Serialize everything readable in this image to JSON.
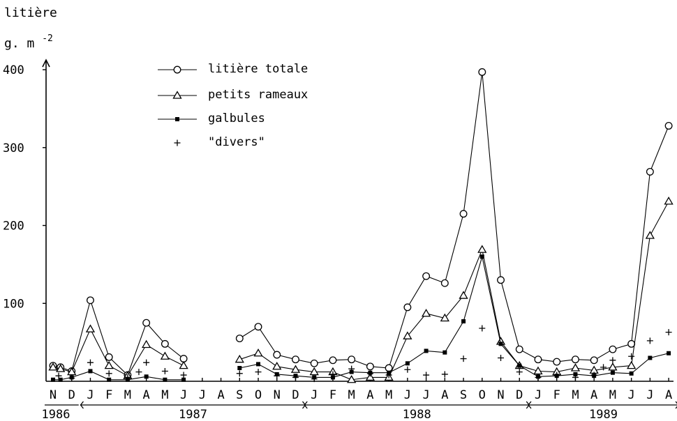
{
  "chart_data": {
    "type": "line",
    "ylabel_line1": "litière",
    "ylabel_line2": "g. m",
    "ylabel_exp": "-2",
    "ylim": [
      0,
      400
    ],
    "yticks": [
      "100",
      "200",
      "300",
      "400"
    ],
    "x": [
      "N",
      "D",
      "J",
      "F",
      "M",
      "A",
      "M",
      "J",
      "J",
      "A",
      "S",
      "O",
      "N",
      "D",
      "J",
      "F",
      "M",
      "A",
      "M",
      "J",
      "J",
      "A",
      "S",
      "O",
      "N",
      "D",
      "J",
      "F",
      "M",
      "A",
      "M",
      "J",
      "J",
      "A"
    ],
    "year_labels": [
      {
        "label": "1986",
        "from": 0,
        "to": 1
      },
      {
        "label": "1987",
        "from": 2,
        "to": 13
      },
      {
        "label": "1988",
        "from": 14,
        "to": 25
      },
      {
        "label": "1989",
        "from": 26,
        "to": 33
      }
    ],
    "series": [
      {
        "name": "litière totale",
        "marker": "circle",
        "points": [
          [
            0,
            20
          ],
          [
            0.4,
            18
          ],
          [
            1,
            13
          ],
          [
            2,
            104
          ],
          [
            3,
            31
          ],
          [
            4,
            8
          ],
          [
            5,
            75
          ],
          [
            6,
            48
          ],
          [
            7,
            29
          ],
          [
            10,
            55
          ],
          [
            11,
            70
          ],
          [
            12,
            34
          ],
          [
            13,
            28
          ],
          [
            14,
            23
          ],
          [
            15,
            27
          ],
          [
            16,
            28
          ],
          [
            17,
            19
          ],
          [
            18,
            17
          ],
          [
            19,
            95
          ],
          [
            20,
            135
          ],
          [
            21,
            126
          ],
          [
            22,
            215
          ],
          [
            23,
            397
          ],
          [
            24,
            130
          ],
          [
            25,
            41
          ],
          [
            26,
            28
          ],
          [
            27,
            25
          ],
          [
            28,
            28
          ],
          [
            29,
            27
          ],
          [
            30,
            41
          ],
          [
            31,
            48
          ],
          [
            32,
            269
          ],
          [
            33,
            328
          ]
        ]
      },
      {
        "name": "petits rameaux",
        "marker": "triangle",
        "points": [
          [
            0,
            18
          ],
          [
            0.4,
            16
          ],
          [
            1,
            12
          ],
          [
            2,
            67
          ],
          [
            3,
            20
          ],
          [
            4,
            7
          ],
          [
            5,
            47
          ],
          [
            6,
            32
          ],
          [
            7,
            20
          ],
          [
            10,
            28
          ],
          [
            11,
            36
          ],
          [
            12,
            19
          ],
          [
            13,
            15
          ],
          [
            14,
            12
          ],
          [
            15,
            12
          ],
          [
            16,
            2
          ],
          [
            17,
            5
          ],
          [
            18,
            5
          ],
          [
            19,
            58
          ],
          [
            20,
            87
          ],
          [
            21,
            81
          ],
          [
            22,
            110
          ],
          [
            23,
            169
          ],
          [
            24,
            51
          ],
          [
            25,
            20
          ],
          [
            26,
            13
          ],
          [
            27,
            12
          ],
          [
            28,
            17
          ],
          [
            29,
            14
          ],
          [
            30,
            18
          ],
          [
            31,
            20
          ],
          [
            32,
            187
          ],
          [
            33,
            231
          ]
        ]
      },
      {
        "name": "galbules",
        "marker": "filled-square",
        "points": [
          [
            0,
            2
          ],
          [
            0.4,
            2
          ],
          [
            1,
            5
          ],
          [
            2,
            13
          ],
          [
            3,
            2
          ],
          [
            4,
            2
          ],
          [
            5,
            6
          ],
          [
            6,
            2
          ],
          [
            7,
            2
          ],
          [
            10,
            17
          ],
          [
            11,
            22
          ],
          [
            12,
            9
          ],
          [
            13,
            7
          ],
          [
            14,
            5
          ],
          [
            15,
            5
          ],
          [
            16,
            12
          ],
          [
            17,
            11
          ],
          [
            18,
            11
          ],
          [
            19,
            23
          ],
          [
            20,
            39
          ],
          [
            21,
            37
          ],
          [
            22,
            77
          ],
          [
            23,
            160
          ],
          [
            24,
            48
          ],
          [
            25,
            20
          ],
          [
            26,
            6
          ],
          [
            27,
            7
          ],
          [
            28,
            9
          ],
          [
            29,
            7
          ],
          [
            30,
            11
          ],
          [
            31,
            10
          ],
          [
            32,
            30
          ],
          [
            33,
            36
          ]
        ]
      },
      {
        "name": "\"divers\"",
        "marker": "plus",
        "points": [
          [
            0.3,
            7
          ],
          [
            1,
            4
          ],
          [
            2,
            24
          ],
          [
            3,
            10
          ],
          [
            4,
            5
          ],
          [
            4.6,
            12
          ],
          [
            5,
            24
          ],
          [
            6,
            13
          ],
          [
            7,
            8
          ],
          [
            10,
            10
          ],
          [
            11,
            12
          ],
          [
            12,
            7
          ],
          [
            13,
            5
          ],
          [
            14,
            3
          ],
          [
            15,
            9
          ],
          [
            16,
            16
          ],
          [
            17,
            10
          ],
          [
            18,
            8
          ],
          [
            19,
            15
          ],
          [
            20,
            8
          ],
          [
            21,
            9
          ],
          [
            22,
            29
          ],
          [
            23,
            68
          ],
          [
            24,
            30
          ],
          [
            25,
            12
          ],
          [
            26,
            5
          ],
          [
            27,
            8
          ],
          [
            28,
            5
          ],
          [
            29,
            8
          ],
          [
            29.5,
            18
          ],
          [
            30,
            27
          ],
          [
            31,
            32
          ],
          [
            32,
            52
          ],
          [
            33,
            63
          ]
        ]
      }
    ]
  }
}
